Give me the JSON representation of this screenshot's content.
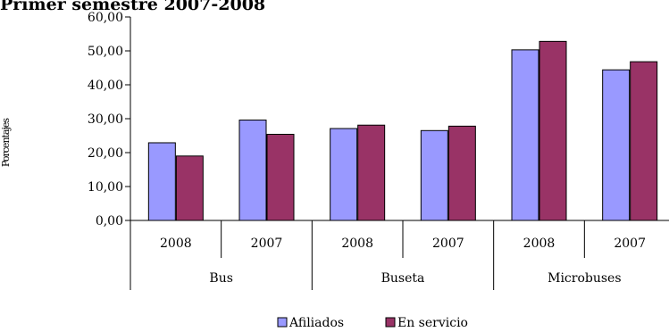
{
  "chart_data": {
    "type": "bar",
    "title": "Primer semestre 2007-2008",
    "ylabel": "Porcentajes",
    "xlabel": "",
    "ylim": [
      0,
      60
    ],
    "ytick_step": 10,
    "ytick_labels": [
      "0,00",
      "10,00",
      "20,00",
      "30,00",
      "40,00",
      "50,00",
      "60,00"
    ],
    "groups": [
      {
        "name": "Bus",
        "categories": [
          "2008",
          "2007"
        ]
      },
      {
        "name": "Buseta",
        "categories": [
          "2008",
          "2007"
        ]
      },
      {
        "name": "Microbuses",
        "categories": [
          "2008",
          "2007"
        ]
      }
    ],
    "categories": [
      "2008",
      "2007",
      "2008",
      "2007",
      "2008",
      "2007"
    ],
    "series": [
      {
        "name": "Afiliados",
        "color": "#9999FF",
        "values": [
          22.9,
          29.6,
          27.1,
          26.5,
          50.3,
          44.4
        ]
      },
      {
        "name": "En servicio",
        "color": "#993366",
        "values": [
          19.0,
          25.4,
          28.1,
          27.8,
          52.8,
          46.8
        ]
      }
    ],
    "legend_position": "bottom"
  }
}
